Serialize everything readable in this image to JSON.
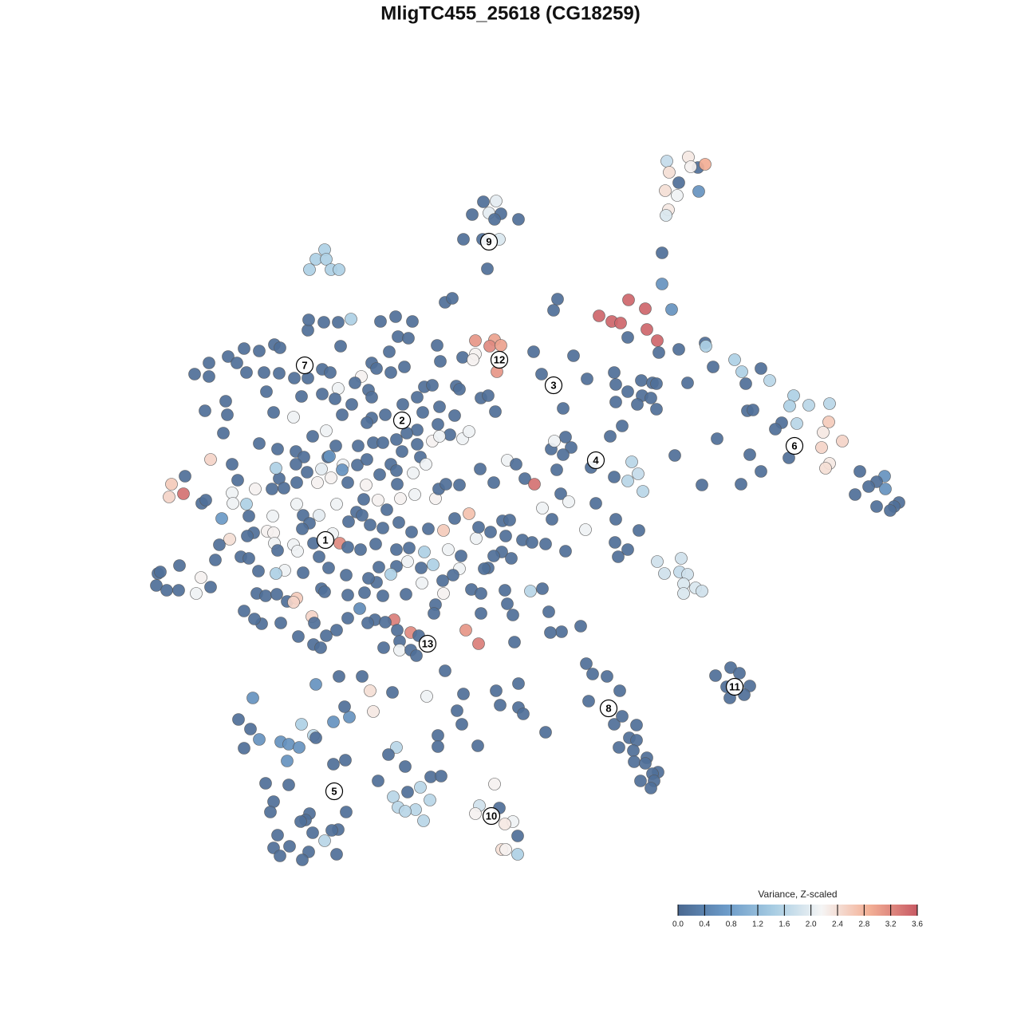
{
  "chart_data": {
    "type": "scatter",
    "title": "MligTC455_25618 (CG18259)",
    "x": [
      836,
      863,
      875,
      884,
      866,
      839,
      851,
      834,
      849,
      876,
      838,
      835,
      606,
      622,
      592,
      613,
      628,
      620,
      650,
      581,
      605,
      626,
      611,
      407,
      396,
      409,
      388,
      415,
      425,
      830,
      830,
      842,
      699,
      694,
      751,
      788,
      809,
      767,
      778,
      811,
      824,
      787,
      826,
      851,
      884,
      885,
      894,
      921,
      930,
      954,
      965,
      935,
      995,
      1014,
      1040,
      990,
      1039,
      980,
      999,
      972,
      1032,
      1056,
      1030,
      989,
      1040,
      1035,
      940,
      954,
      1078,
      1109,
      1099,
      1110,
      1089,
      1072,
      1127,
      1121,
      1099,
      1116,
      929,
      880,
      899,
      937,
      944,
      862,
      846,
      770,
      804,
      818,
      823,
      772,
      787,
      805,
      772,
      816,
      799,
      823,
      736,
      719,
      669,
      679,
      706,
      780,
      765,
      709,
      716,
      691,
      706,
      695,
      741,
      792,
      770,
      787,
      800,
      806,
      747,
      698,
      703,
      713,
      680,
      692,
      772,
      801,
      734,
      771,
      787,
      775,
      709,
      684,
      824,
      854,
      833,
      852,
      862,
      857,
      872,
      880,
      857,
      735,
      743,
      761,
      777,
      738,
      770,
      780,
      798,
      789,
      798,
      776,
      794,
      811,
      795,
      809,
      825,
      818,
      803,
      820,
      816,
      728,
      704,
      690,
      688,
      916,
      927,
      897,
      911,
      940,
      915,
      933,
      244,
      262,
      286,
      306,
      325,
      344,
      351,
      262,
      297,
      309,
      331,
      350,
      369,
      386,
      387,
      406,
      424,
      440,
      477,
      496,
      517,
      427,
      499,
      512,
      548,
      558,
      567,
      552,
      580,
      596,
      620,
      614,
      628,
      596,
      593,
      623,
      488,
      466,
      472,
      453,
      490,
      507,
      404,
      414,
      386,
      334,
      257,
      283,
      285,
      280,
      325,
      343,
      368,
      378,
      404,
      424,
      420,
      445,
      462,
      466,
      441,
      429,
      466,
      460,
      483,
      505,
      523,
      532,
      542,
      551,
      530,
      572,
      576,
      603,
      612,
      621,
      570,
      549,
      523,
      564,
      580,
      588,
      542,
      551,
      523,
      409,
      392,
      421,
      449,
      468,
      497,
      510,
      480,
      348,
      371,
      381,
      411,
      371,
      385,
      403,
      413,
      430,
      448,
      460,
      490,
      504,
      527,
      534,
      518,
      497,
      476,
      498,
      520,
      502,
      474,
      456,
      459,
      436,
      415,
      398,
      372,
      350,
      356,
      341,
      320,
      298,
      291,
      264,
      232,
      215,
      230,
      212,
      253,
      258,
      291,
      292,
      309,
      278,
      312,
      342,
      372,
      380,
      346,
      429,
      422,
      447,
      485,
      546,
      550,
      559,
      576,
      602,
      619,
      636,
      647,
      658,
      670,
      588,
      570,
      556,
      537,
      516,
      500,
      480,
      464,
      454,
      437,
      400,
      388,
      379,
      335,
      343,
      318,
      310,
      288,
      275,
      270,
      225,
      198,
      201,
      196,
      209,
      224,
      252,
      264,
      246,
      302,
      312,
      344,
      348,
      368,
      373,
      393,
      417,
      426,
      436,
      452,
      471,
      497,
      513,
      532,
      562,
      578,
      597,
      600,
      615,
      634,
      630,
      639,
      655,
      667,
      629,
      619,
      641,
      612,
      607,
      576,
      568,
      543,
      528,
      511,
      497,
      490,
      475,
      472,
      462,
      434,
      412,
      400,
      380,
      357,
      346,
      324,
      322,
      333,
      347,
      360,
      372,
      368,
      403,
      407,
      436,
      457,
      480,
      509,
      529,
      555,
      556,
      591,
      603,
      633,
      665,
      680,
      636,
      643,
      603,
      546,
      544,
      494,
      470,
      483,
      461,
      451,
      436,
      422,
      391,
      394,
      409,
      374,
      393,
      402,
      328,
      306,
      319,
      352,
      498,
      501,
      515,
      525,
      584,
      600,
      645,
      501,
      515,
      481,
      522,
      558,
      396,
      425,
      454,
      464,
      492,
      535,
      581,
      622,
      650,
      627,
      650,
      656,
      573,
      579,
      599,
      684,
      317,
      299,
      314,
      325,
      306,
      352,
      362,
      375,
      360,
      378,
      393,
      396,
      418,
      438,
      432,
      468,
      549,
      549,
      497,
      487,
      433,
      418,
      508,
      540,
      553,
      474,
      527,
      511,
      493,
      499,
      539,
      521,
      508,
      531,
      333,
      362,
      343,
      339,
      388,
      383,
      377,
      434,
      424,
      416,
      392,
      407,
      348,
      363,
      343,
      351,
      387,
      379,
      422,
      620,
      601,
      626,
      596,
      643,
      633,
      649,
      629,
      634,
      649
    ],
    "y": [
      -202,
      -197,
      -210,
      -206,
      -209,
      -216,
      -229,
      -239,
      -245,
      -240,
      -263,
      -270,
      -253,
      -252,
      -269,
      -267,
      -268,
      -275,
      -275,
      -300,
      -300,
      -300,
      -337,
      -313,
      -325,
      -325,
      -338,
      -338,
      -338,
      -317,
      -356,
      -388,
      -375,
      -389,
      -396,
      -376,
      -387,
      -403,
      -405,
      -413,
      -427,
      -423,
      -442,
      -438,
      -430,
      -434,
      -460,
      -451,
      -466,
      -462,
      -477,
      -481,
      -496,
      -508,
      -506,
      -509,
      -529,
      -530,
      -531,
      -538,
      -542,
      -553,
      -561,
      -574,
      -581,
      -587,
      -570,
      -591,
      -591,
      -597,
      -604,
      -613,
      -610,
      -620,
      -630,
      -635,
      -635,
      -640,
      -607,
      -608,
      -550,
      -515,
      -514,
      -480,
      -571,
      -467,
      -477,
      -480,
      -481,
      -482,
      -491,
      -496,
      -504,
      -499,
      -507,
      -513,
      -475,
      -446,
      -441,
      -469,
      -512,
      -534,
      -547,
      -548,
      -561,
      -563,
      -570,
      -553,
      -586,
      -579,
      -598,
      -603,
      -594,
      -616,
      -631,
      -589,
      -619,
      -629,
      -637,
      -651,
      -651,
      -665,
      -664,
      -680,
      -689,
      -698,
      -691,
      -682,
      -704,
      -700,
      -719,
      -717,
      -720,
      -732,
      -737,
      -741,
      -744,
      -832,
      -845,
      -848,
      -866,
      -879,
      -908,
      -898,
      -909,
      -925,
      -928,
      -937,
      -941,
      -950,
      -955,
      -957,
      -968,
      -970,
      -979,
      -979,
      -988,
      -785,
      -792,
      -793,
      -767,
      -837,
      -844,
      -847,
      -861,
      -860,
      -875,
      -871,
      -469,
      -455,
      -447,
      -437,
      -440,
      -432,
      -436,
      -472,
      -455,
      -467,
      -467,
      -468,
      -474,
      -414,
      -401,
      -404,
      -404,
      -400,
      -403,
      -397,
      -403,
      -434,
      -422,
      -424,
      -433,
      -379,
      -374,
      -453,
      -448,
      -427,
      -426,
      -434,
      -433,
      -444,
      -451,
      -466,
      -441,
      -455,
      -462,
      -472,
      -467,
      -460,
      -463,
      -467,
      -474,
      -491,
      -515,
      -503,
      -520,
      -543,
      -556,
      -517,
      -523,
      -497,
      -494,
      -487,
      -500,
      -480,
      -489,
      -498,
      -507,
      -520,
      -524,
      -530,
      -520,
      -507,
      -498,
      -485,
      -483,
      -510,
      -517,
      -484,
      -488,
      -499,
      -496,
      -516,
      -521,
      -532,
      -539,
      -545,
      -550,
      -541,
      -553,
      -547,
      -557,
      -540,
      -547,
      -559,
      -559,
      -555,
      -551,
      -543,
      -555,
      -563,
      -566,
      -573,
      -573,
      -582,
      -592,
      -588,
      -572,
      -583,
      -583,
      -576,
      -582,
      -566,
      -573,
      -582,
      -593,
      -590,
      -595,
      -607,
      -620,
      -625,
      -627,
      -626,
      -608,
      -605,
      -599,
      -605,
      -605,
      -600,
      -612,
      -613,
      -613,
      -602,
      -582,
      -576,
      -597,
      -607,
      -619,
      -623,
      -631,
      -627,
      -618,
      -631,
      -632,
      -650,
      -647,
      -647,
      -632,
      -646,
      -587,
      -589,
      -632,
      -642,
      -639,
      -625,
      -613,
      -607,
      -608,
      -588,
      -605,
      -577,
      -582,
      -600,
      -607,
      -644,
      -650,
      -665,
      -663,
      -667,
      -655,
      -662,
      -658,
      -646,
      -654,
      -646,
      -656,
      -663,
      -666,
      -668,
      -668,
      -672,
      -676,
      -683,
      -702,
      -709,
      -719,
      -717,
      -734,
      -740,
      -740,
      -724,
      -736,
      -744,
      -698,
      -700,
      -681,
      -690,
      -683,
      -691,
      -681,
      -669,
      -681,
      -686,
      -689,
      -682,
      -689,
      -687,
      -692,
      -689,
      -697,
      -675,
      -661,
      -667,
      -672,
      -653,
      -652,
      -677,
      -680,
      -692,
      -697,
      -700,
      -712,
      -713,
      -713,
      -721,
      -708,
      -712,
      -704,
      -710,
      -720,
      -711,
      -730,
      -725,
      -721,
      -712,
      -698,
      -718,
      -715,
      -719,
      -716,
      -744,
      -747,
      -745,
      -754,
      -750,
      -755,
      -738,
      -742,
      -746,
      -743,
      -747,
      -745,
      -731,
      -728,
      -744,
      -739,
      -744,
      -740,
      -741,
      -738,
      -757,
      -771,
      -769,
      -758,
      -769,
      -777,
      -777,
      -780,
      -781,
      -763,
      -775,
      -790,
      -773,
      -781,
      -797,
      -798,
      -808,
      -812,
      -782,
      -766,
      -776,
      -781,
      -790,
      -804,
      -793,
      -797,
      -790,
      -807,
      -805,
      -815,
      -815,
      -812,
      -822,
      -841,
      -858,
      -848,
      -848,
      -866,
      -868,
      -873,
      -870,
      -866,
      -857,
      -884,
      -887,
      -895,
      -891,
      -908,
      -935,
      -918,
      -875,
      -902,
      -914,
      -927,
      -938,
      -930,
      -933,
      -937,
      -954,
      -908,
      -922,
      -925,
      -905,
      -899,
      -886,
      -892,
      -922,
      -936,
      -937,
      -946,
      -953,
      -958,
      -961,
      -974,
      -973,
      -979,
      -987,
      -993,
      -999,
      -1012,
      -1003,
      -1015,
      -1017,
      -1029,
      -982,
      -984,
      -1005,
      -1018,
      -1020,
      -1028,
      -1030,
      -1018,
      -1040,
      -1041,
      -1044,
      -1054,
      -1047,
      -1061,
      -1063,
      -1073,
      -1068,
      -1078,
      -1071,
      -983,
      -1010,
      -1013,
      -1020,
      -1030,
      -1033,
      -1048,
      -1065,
      -1065,
      -1071
    ],
    "values": [
      1.7,
      2.3,
      0.1,
      2.9,
      2.2,
      2.4,
      0.1,
      2.4,
      2.1,
      0.6,
      2.3,
      1.9,
      0.1,
      2.0,
      0.1,
      2.0,
      0.1,
      0.1,
      0.1,
      0.1,
      0.1,
      1.9,
      0.1,
      1.5,
      1.5,
      1.5,
      1.5,
      1.5,
      1.5,
      0.1,
      0.6,
      0.6,
      0.1,
      0.1,
      3.5,
      3.5,
      3.5,
      3.5,
      3.5,
      3.5,
      3.5,
      0.1,
      0.1,
      0.1,
      0.1,
      1.5,
      0.1,
      1.5,
      1.5,
      0.1,
      1.6,
      0.1,
      1.5,
      1.6,
      1.6,
      1.5,
      2.6,
      0.1,
      1.6,
      0.1,
      2.3,
      2.5,
      2.5,
      0.1,
      2.3,
      2.4,
      0.1,
      0.1,
      0.1,
      0.6,
      0.1,
      0.6,
      0.1,
      0.1,
      0.1,
      0.1,
      0.1,
      0.1,
      0.1,
      0.1,
      0.1,
      0.1,
      0.1,
      0.1,
      0.1,
      0.1,
      0.1,
      0.1,
      0.1,
      0.1,
      0.1,
      0.1,
      0.1,
      0.1,
      0.1,
      0.1,
      0.1,
      0.1,
      0.1,
      0.1,
      0.1,
      0.1,
      0.1,
      0.1,
      0.1,
      0.1,
      0.1,
      2.1,
      0.1,
      1.6,
      0.1,
      1.6,
      1.7,
      1.6,
      0.1,
      0.1,
      0.1,
      2.1,
      2.1,
      0.1,
      0.1,
      0.1,
      2.1,
      0.1,
      0.1,
      0.1,
      0.1,
      0.1,
      1.8,
      1.8,
      1.8,
      1.7,
      1.8,
      1.9,
      1.9,
      1.8,
      1.9,
      0.1,
      0.1,
      0.1,
      0.1,
      0.1,
      0.1,
      0.1,
      0.1,
      0.1,
      0.1,
      0.1,
      0.1,
      0.1,
      0.1,
      0.1,
      0.1,
      0.1,
      0.1,
      0.1,
      0.1,
      0.1,
      0.1,
      0.1,
      0.1,
      0.1,
      0.1,
      0.1,
      0.1,
      0.1,
      0.1,
      0.1,
      0.1,
      0.1,
      0.1,
      0.1,
      0.1,
      0.1,
      0.1,
      0.1,
      0.1,
      0.1,
      0.1,
      0.1,
      0.1,
      0.1,
      0.1,
      0.1,
      0.1,
      1.5,
      0.1,
      0.1,
      0.1,
      0.1,
      0.1,
      0.1,
      0.1,
      0.1,
      0.1,
      0.1,
      0.1,
      3.1,
      3.0,
      3.2,
      3.0,
      2.2,
      2.2,
      3.1,
      0.1,
      0.1,
      0.1,
      2.2,
      0.1,
      0.1,
      0.1,
      0.1,
      0.1,
      0.1,
      0.1,
      0.1,
      0.1,
      0.1,
      0.1,
      0.1,
      2.1,
      0.1,
      0.1,
      2.1,
      0.1,
      0.1,
      0.1,
      0.1,
      0.1,
      0.1,
      0.1,
      0.1,
      0.1,
      0.1,
      0.1,
      0.1,
      0.1,
      0.1,
      0.1,
      0.1,
      0.1,
      0.1,
      0.1,
      0.1,
      0.1,
      0.1,
      0.1,
      0.1,
      2.1,
      2.1,
      2.2,
      2.1,
      0.1,
      2.1,
      0.1,
      0.1,
      0.1,
      0.1,
      0.1,
      0.1,
      0.1,
      0.1,
      0.1,
      0.1,
      0.1,
      0.1,
      0.1,
      2.0,
      0.6,
      2.1,
      0.1,
      0.1,
      0.1,
      0.1,
      0.1,
      2.1,
      2.1,
      0.1,
      0.1,
      0.1,
      2.1,
      2.2,
      2.2,
      0.1,
      2.2,
      0.1,
      2.2,
      2.2,
      0.1,
      0.1,
      0.1,
      0.1,
      2.2,
      0.1,
      0.1,
      2.5,
      0.1,
      2.6,
      3.4,
      2.5,
      0.1,
      0.1,
      2.1,
      2.1,
      1.5,
      0.7,
      0.1,
      2.1,
      2.1,
      0.1,
      1.5,
      0.6,
      2.1,
      0.1,
      0.1,
      2.2,
      0.1,
      0.1,
      0.1,
      0.1,
      0.1,
      2.1,
      0.1,
      0.1,
      3.4,
      2.7,
      0.1,
      2.6,
      0.1,
      0.1,
      0.1,
      0.1,
      0.1,
      0.1,
      0.1,
      2.0,
      0.1,
      0.1,
      2.2,
      2.2,
      0.1,
      0.1,
      2.4,
      0.1,
      0.1,
      0.1,
      0.1,
      0.1,
      0.1,
      0.1,
      0.1,
      2.2,
      0.1,
      2.1,
      0.1,
      0.1,
      2.1,
      0.1,
      2.1,
      2.1,
      0.1,
      2.1,
      3.2,
      0.1,
      0.1,
      0.1,
      0.1,
      0.1,
      1.5,
      2.1,
      0.1,
      2.1,
      0.1,
      0.1,
      0.1,
      0.1,
      0.1,
      0.1,
      0.1,
      0.1,
      0.1,
      0.1,
      0.1,
      0.1,
      2.1,
      0.1,
      1.5,
      0.1,
      2.1,
      0.1,
      1.5,
      0.1,
      0.1,
      0.1,
      0.1,
      0.1,
      0.1,
      0.1,
      2.1,
      1.5,
      0.1,
      0.1,
      0.1,
      0.1,
      0.1,
      2.6,
      2.5,
      0.1,
      0.1,
      0.1,
      0.1,
      0.1,
      0.1,
      2.1,
      0.1,
      2.2,
      0.1,
      0.1,
      0.1,
      1.6,
      0.1,
      0.1,
      0.1,
      0.1,
      0.1,
      0.1,
      3.3,
      0.1,
      0.1,
      0.1,
      0.5,
      0.1,
      0.1,
      2.5,
      0.1,
      0.1,
      0.1,
      0.1,
      0.1,
      0.1,
      0.1,
      0.1,
      0.1,
      0.1,
      0.1,
      3.2,
      0.1,
      3.1,
      3.3,
      0.1,
      2.1,
      0.1,
      0.1,
      0.1,
      0.1,
      0.6,
      0.1,
      0.1,
      2.4,
      0.1,
      2.1,
      0.1,
      0.1,
      0.1,
      0.1,
      0.1,
      0.1,
      0.1,
      0.1,
      0.1,
      0.1,
      0.6,
      0.1,
      0.1,
      0.6,
      0.1,
      0.6,
      0.6,
      0.6,
      0.6,
      1.5,
      1.6,
      0.1,
      0.6,
      0.6,
      0.1,
      2.3,
      0.1,
      0.1,
      1.6,
      0.1,
      0.1,
      0.1,
      0.1,
      0.1,
      0.1,
      0.1,
      1.6,
      0.1,
      1.6,
      1.6,
      1.6,
      1.6,
      1.6,
      1.6,
      0.1,
      0.1,
      0.1,
      0.1,
      0.1,
      0.1,
      0.1,
      0.1,
      0.1,
      0.1,
      0.1,
      1.6,
      0.1,
      0.1,
      0.1,
      0.1,
      0.1,
      0.1,
      0.1,
      2.2,
      1.8,
      0.1,
      2.2,
      2.1,
      2.3,
      0.1,
      2.4,
      2.2,
      1.5
    ],
    "colormap": [
      "#4a6890",
      "#6b9ac8",
      "#a8cde3",
      "#f5f5f5",
      "#f3b096",
      "#c85a64"
    ],
    "point_stroke": "#555555",
    "clusters": {
      "labels": [
        "1",
        "2",
        "3",
        "4",
        "5",
        "6",
        "7",
        "8",
        "9",
        "10",
        "11",
        "12",
        "13"
      ],
      "x": [
        408,
        504,
        694,
        747,
        419,
        996,
        382,
        763,
        613,
        616,
        921,
        626,
        536
      ],
      "y": [
        -677,
        -527,
        -483,
        -577,
        -992,
        -559,
        -458,
        -888,
        -303,
        -1023,
        -861,
        -451,
        -807
      ]
    },
    "colorbar": {
      "title": "Variance, Z-scaled",
      "lim": [
        0,
        3.6
      ],
      "ticks": [
        {
          "value": 0,
          "label": "0.0"
        },
        0.4,
        0.8,
        1.2,
        1.6,
        {
          "value": 2,
          "label": "2.0"
        },
        2.4,
        2.8,
        3.2,
        3.6
      ]
    }
  }
}
